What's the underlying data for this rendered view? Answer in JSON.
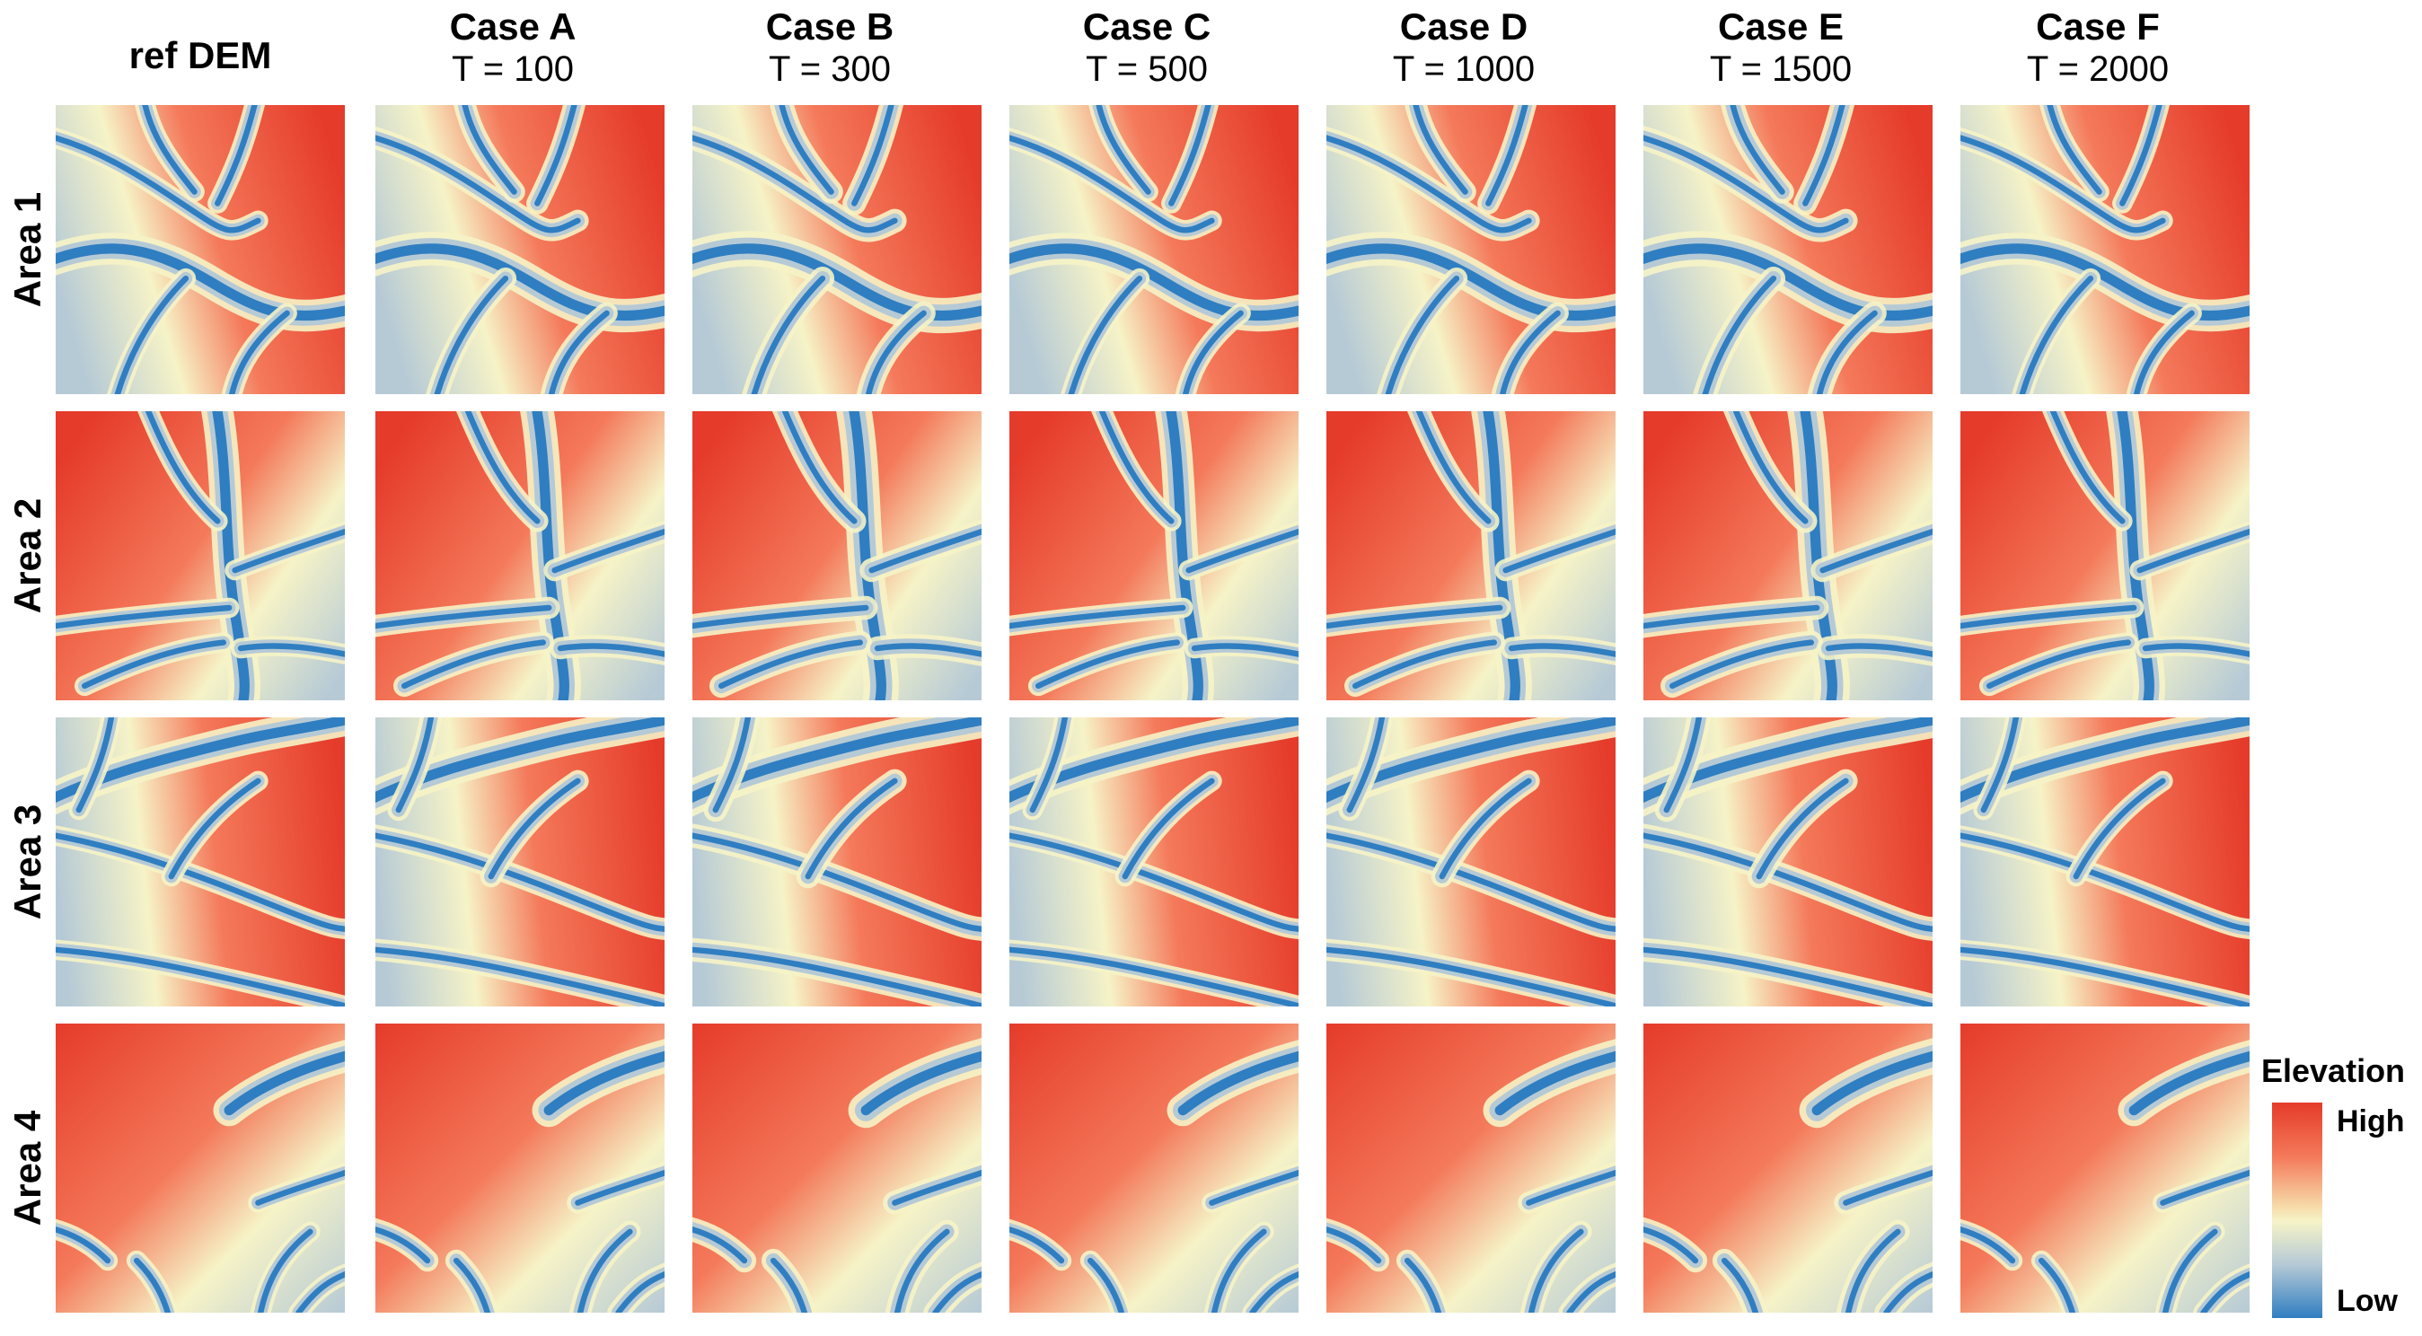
{
  "columns": [
    {
      "title": "ref DEM",
      "sub": ""
    },
    {
      "title": "Case A",
      "sub": "T = 100"
    },
    {
      "title": "Case B",
      "sub": "T = 300"
    },
    {
      "title": "Case C",
      "sub": "T = 500"
    },
    {
      "title": "Case D",
      "sub": "T = 1000"
    },
    {
      "title": "Case E",
      "sub": "T = 1500"
    },
    {
      "title": "Case F",
      "sub": "T = 2000"
    }
  ],
  "rows": [
    {
      "label": "Area 1"
    },
    {
      "label": "Area 2"
    },
    {
      "label": "Area 3"
    },
    {
      "label": "Area 4"
    }
  ],
  "legend": {
    "title": "Elevation",
    "high": "High",
    "low": "Low"
  },
  "colors": {
    "high": "#e53b2a",
    "mid_high": "#f4795a",
    "mid": "#f6f3c7",
    "mid_low": "#b6cad6",
    "low": "#2f7ec1"
  }
}
